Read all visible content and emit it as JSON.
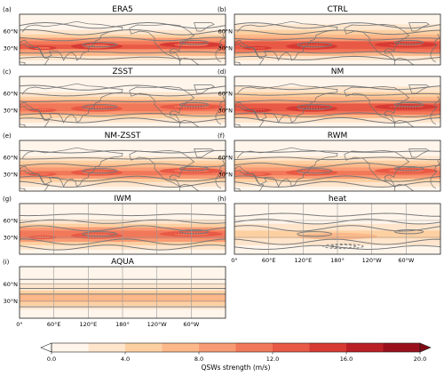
{
  "chart_data": {
    "type": "heatmap",
    "map_domain": {
      "lon": [
        0,
        360
      ],
      "lat": [
        0,
        90
      ]
    },
    "panels": [
      {
        "tag": "(a)",
        "title": "ERA5",
        "coastlines": true,
        "lat_ticks": [
          "60°N",
          "30°N"
        ],
        "lon_ticks": [],
        "core_intensity": 14,
        "grid": false
      },
      {
        "tag": "(b)",
        "title": "CTRL",
        "coastlines": true,
        "lat_ticks": [
          "60°N",
          "30°N"
        ],
        "lon_ticks": [],
        "core_intensity": 15,
        "grid": false
      },
      {
        "tag": "(c)",
        "title": "ZSST",
        "coastlines": true,
        "lat_ticks": [
          "60°N",
          "30°N"
        ],
        "lon_ticks": [],
        "core_intensity": 13,
        "grid": false
      },
      {
        "tag": "(d)",
        "title": "NM",
        "coastlines": true,
        "lat_ticks": [
          "60°N",
          "30°N"
        ],
        "lon_ticks": [],
        "core_intensity": 15,
        "grid": false
      },
      {
        "tag": "(e)",
        "title": "NM-ZSST",
        "coastlines": true,
        "lat_ticks": [
          "60°N",
          "30°N"
        ],
        "lon_ticks": [],
        "core_intensity": 12,
        "grid": false
      },
      {
        "tag": "(f)",
        "title": "RWM",
        "coastlines": true,
        "lat_ticks": [
          "60°N",
          "30°N"
        ],
        "lon_ticks": [],
        "core_intensity": 12,
        "grid": false
      },
      {
        "tag": "(g)",
        "title": "IWM",
        "coastlines": false,
        "lat_ticks": [
          "60°N",
          "30°N"
        ],
        "lon_ticks": [],
        "core_intensity": 13,
        "grid": true
      },
      {
        "tag": "(h)",
        "title": "heat",
        "coastlines": false,
        "lat_ticks": [],
        "lon_ticks": [
          "0°",
          "60°E",
          "120°E",
          "180°",
          "120°W",
          "60°W"
        ],
        "core_intensity": 5,
        "grid": true
      },
      {
        "tag": "(i)",
        "title": "AQUA",
        "coastlines": false,
        "lat_ticks": [
          "60°N",
          "30°N"
        ],
        "lon_ticks": [
          "0°",
          "60°E",
          "120°E",
          "180°",
          "120°W",
          "60°W"
        ],
        "core_intensity": 8,
        "grid": true
      }
    ],
    "colorbar": {
      "label": "QSWs strength (m/s)",
      "ticks": [
        "0.0",
        "4.0",
        "8.0",
        "12.0",
        "16.0",
        "20.0"
      ],
      "range": [
        0,
        20
      ],
      "levels": [
        0,
        2,
        4,
        6,
        8,
        10,
        12,
        14,
        16,
        18,
        20
      ],
      "colors": [
        "#fff5eb",
        "#fee5cc",
        "#fdd0a2",
        "#fcb889",
        "#f89a73",
        "#f2785a",
        "#e85a45",
        "#d63a33",
        "#b91f25",
        "#99101c"
      ],
      "extend": "both"
    },
    "contour_color": "#7a7a7a"
  }
}
